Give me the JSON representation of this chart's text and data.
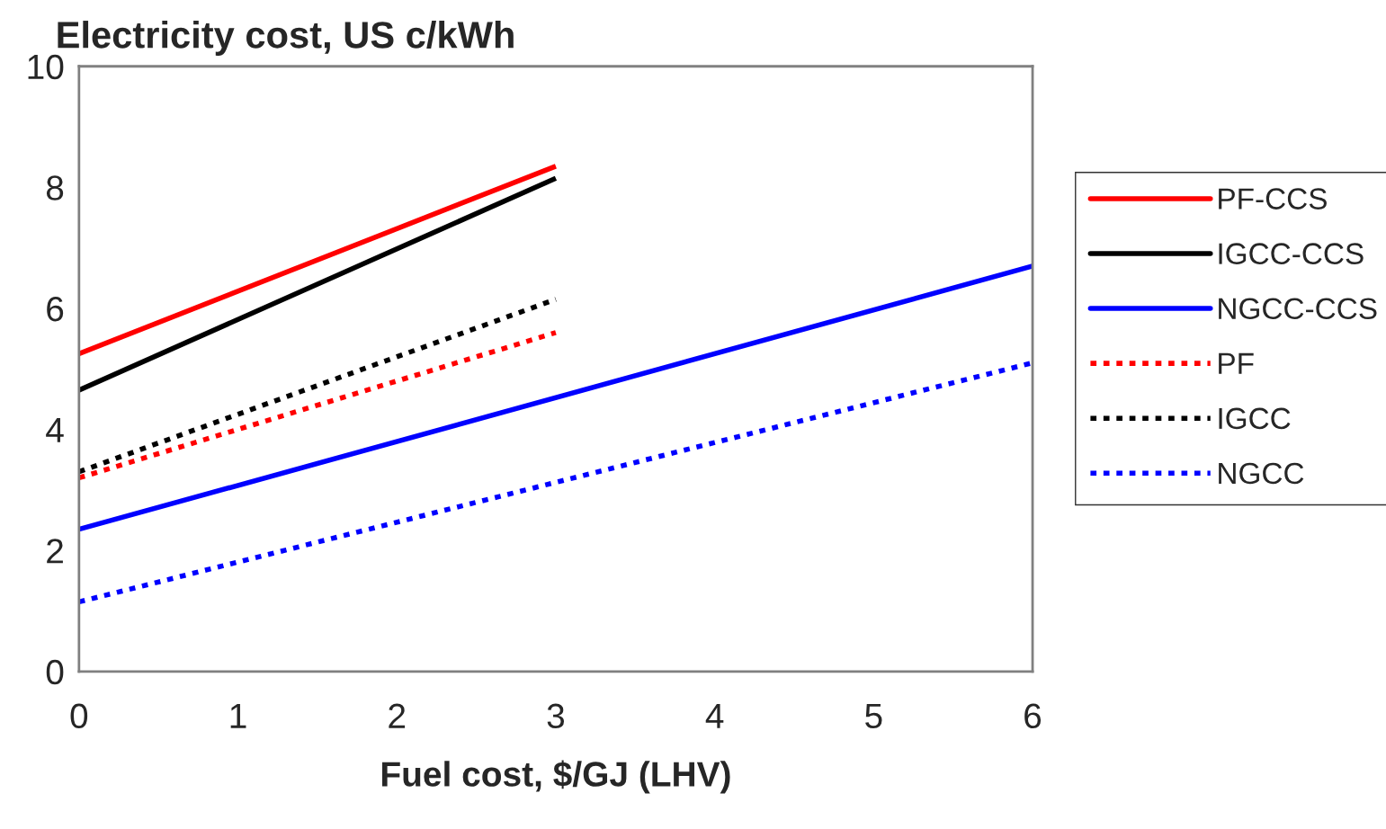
{
  "chart_data": {
    "type": "line",
    "title": "Electricity cost, US c/kWh",
    "xlabel": "Fuel cost, $/GJ (LHV)",
    "xlim": [
      0,
      6
    ],
    "xticks": [
      0,
      1,
      2,
      3,
      4,
      5,
      6
    ],
    "ylim": [
      0,
      10
    ],
    "yticks": [
      0,
      2,
      4,
      6,
      8,
      10
    ],
    "grid": false,
    "legend": "right",
    "series": [
      {
        "name": "PF-CCS",
        "color": "#ff0000",
        "line_style": "solid",
        "x": [
          0,
          3
        ],
        "values": [
          5.25,
          8.35
        ]
      },
      {
        "name": "IGCC-CCS",
        "color": "#000000",
        "line_style": "solid",
        "x": [
          0,
          3
        ],
        "values": [
          4.65,
          8.15
        ]
      },
      {
        "name": "NGCC-CCS",
        "color": "#0000ff",
        "line_style": "solid",
        "x": [
          0,
          6
        ],
        "values": [
          2.35,
          6.7
        ]
      },
      {
        "name": "PF",
        "color": "#ff0000",
        "line_style": "dashed",
        "x": [
          0,
          3
        ],
        "values": [
          3.2,
          5.6
        ]
      },
      {
        "name": "IGCC",
        "color": "#000000",
        "line_style": "dashed",
        "x": [
          0,
          3
        ],
        "values": [
          3.3,
          6.15
        ]
      },
      {
        "name": "NGCC",
        "color": "#0000ff",
        "line_style": "dashed",
        "x": [
          0,
          6
        ],
        "values": [
          1.15,
          5.1
        ]
      }
    ]
  }
}
